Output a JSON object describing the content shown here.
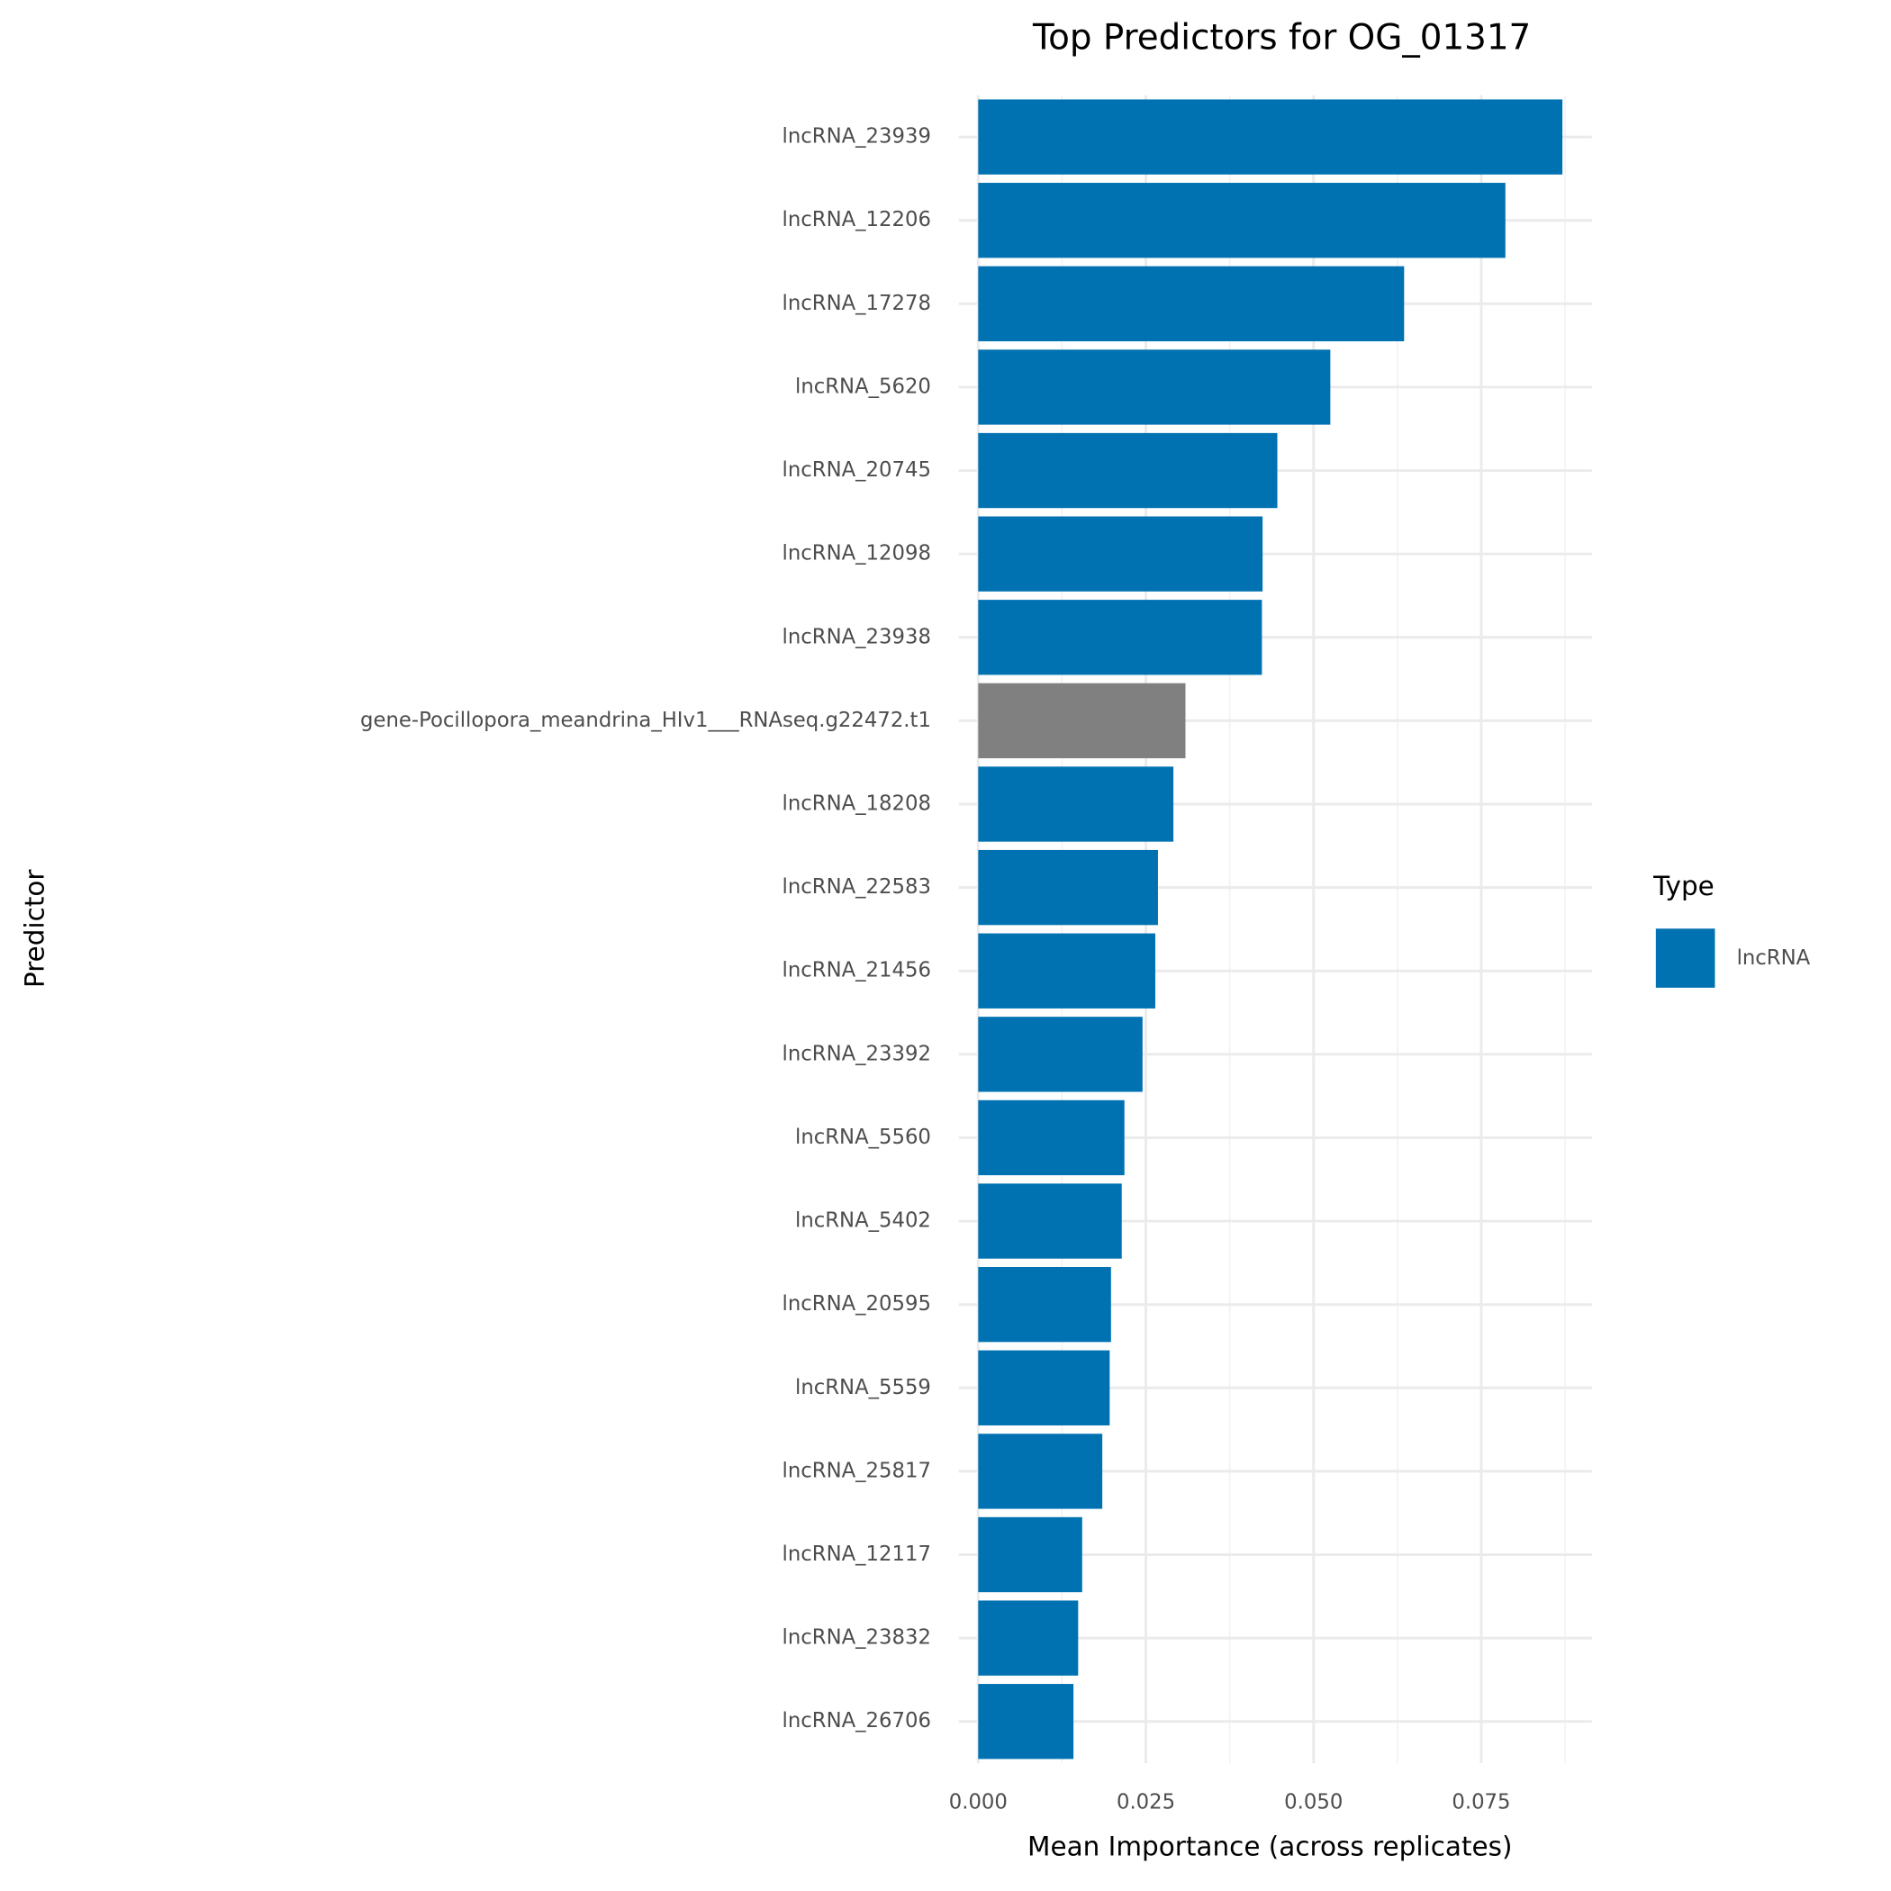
{
  "chart_data": {
    "type": "barh",
    "title": "Top Predictors for OG_01317",
    "x_label": "Mean Importance (across replicates)",
    "y_label": "Predictor",
    "categories": [
      "lncRNA_23939",
      "lncRNA_12206",
      "lncRNA_17278",
      "lncRNA_5620",
      "lncRNA_20745",
      "lncRNA_12098",
      "lncRNA_23938",
      "gene-Pocillopora_meandrina_HIv1___RNAseq.g22472.t1",
      "lncRNA_18208",
      "lncRNA_22583",
      "lncRNA_21456",
      "lncRNA_23392",
      "lncRNA_5560",
      "lncRNA_5402",
      "lncRNA_20595",
      "lncRNA_5559",
      "lncRNA_25817",
      "lncRNA_12117",
      "lncRNA_23832",
      "lncRNA_26706"
    ],
    "values": [
      0.0871,
      0.0786,
      0.0635,
      0.0525,
      0.0446,
      0.0424,
      0.0423,
      0.0309,
      0.0291,
      0.0268,
      0.0264,
      0.0245,
      0.0218,
      0.0214,
      0.0198,
      0.0196,
      0.0185,
      0.0155,
      0.0149,
      0.0142
    ],
    "colors": [
      "#0072b2",
      "#0072b2",
      "#0072b2",
      "#0072b2",
      "#0072b2",
      "#0072b2",
      "#0072b2",
      "#808080",
      "#0072b2",
      "#0072b2",
      "#0072b2",
      "#0072b2",
      "#0072b2",
      "#0072b2",
      "#0072b2",
      "#0072b2",
      "#0072b2",
      "#0072b2",
      "#0072b2",
      "#0072b2"
    ],
    "xlim": [
      -0.0029,
      0.0915
    ],
    "xticks": [
      {
        "value": 0,
        "label": "0.000"
      },
      {
        "value": 0.025,
        "label": "0.025"
      },
      {
        "value": 0.05,
        "label": "0.050"
      },
      {
        "value": 0.075,
        "label": "0.075"
      }
    ],
    "minor_xticks": [
      0.0125,
      0.0375,
      0.0625,
      0.0875
    ],
    "grid": true,
    "legend": {
      "title": "Type",
      "position": "right",
      "entries": [
        {
          "name": "lncRNA",
          "color": "#0072b2"
        }
      ]
    }
  }
}
